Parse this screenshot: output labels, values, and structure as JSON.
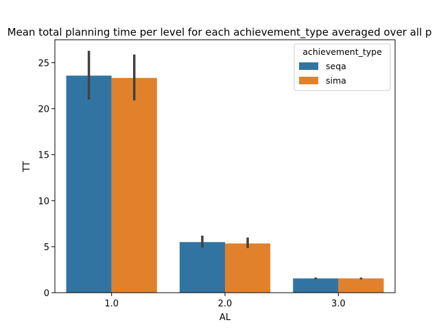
{
  "chart_data": {
    "type": "bar",
    "title": "Mean total planning time per level for each achievement_type averaged over all p",
    "xlabel": "AL",
    "ylabel": "TT",
    "categories": [
      "1.0",
      "2.0",
      "3.0"
    ],
    "ylim": [
      0,
      27.5
    ],
    "yticks": [
      0,
      5,
      10,
      15,
      20,
      25
    ],
    "grid": false,
    "legend": {
      "title": "achievement_type",
      "placement": "top-right"
    },
    "series": [
      {
        "name": "seqa",
        "color": "#3274a1",
        "values": [
          23.6,
          5.5,
          1.55
        ],
        "ci_low": [
          21.0,
          4.9,
          1.45
        ],
        "ci_high": [
          26.3,
          6.2,
          1.65
        ]
      },
      {
        "name": "sima",
        "color": "#e1812c",
        "values": [
          23.35,
          5.35,
          1.55
        ],
        "ci_low": [
          20.9,
          4.85,
          1.45
        ],
        "ci_high": [
          25.9,
          6.0,
          1.65
        ]
      }
    ]
  }
}
